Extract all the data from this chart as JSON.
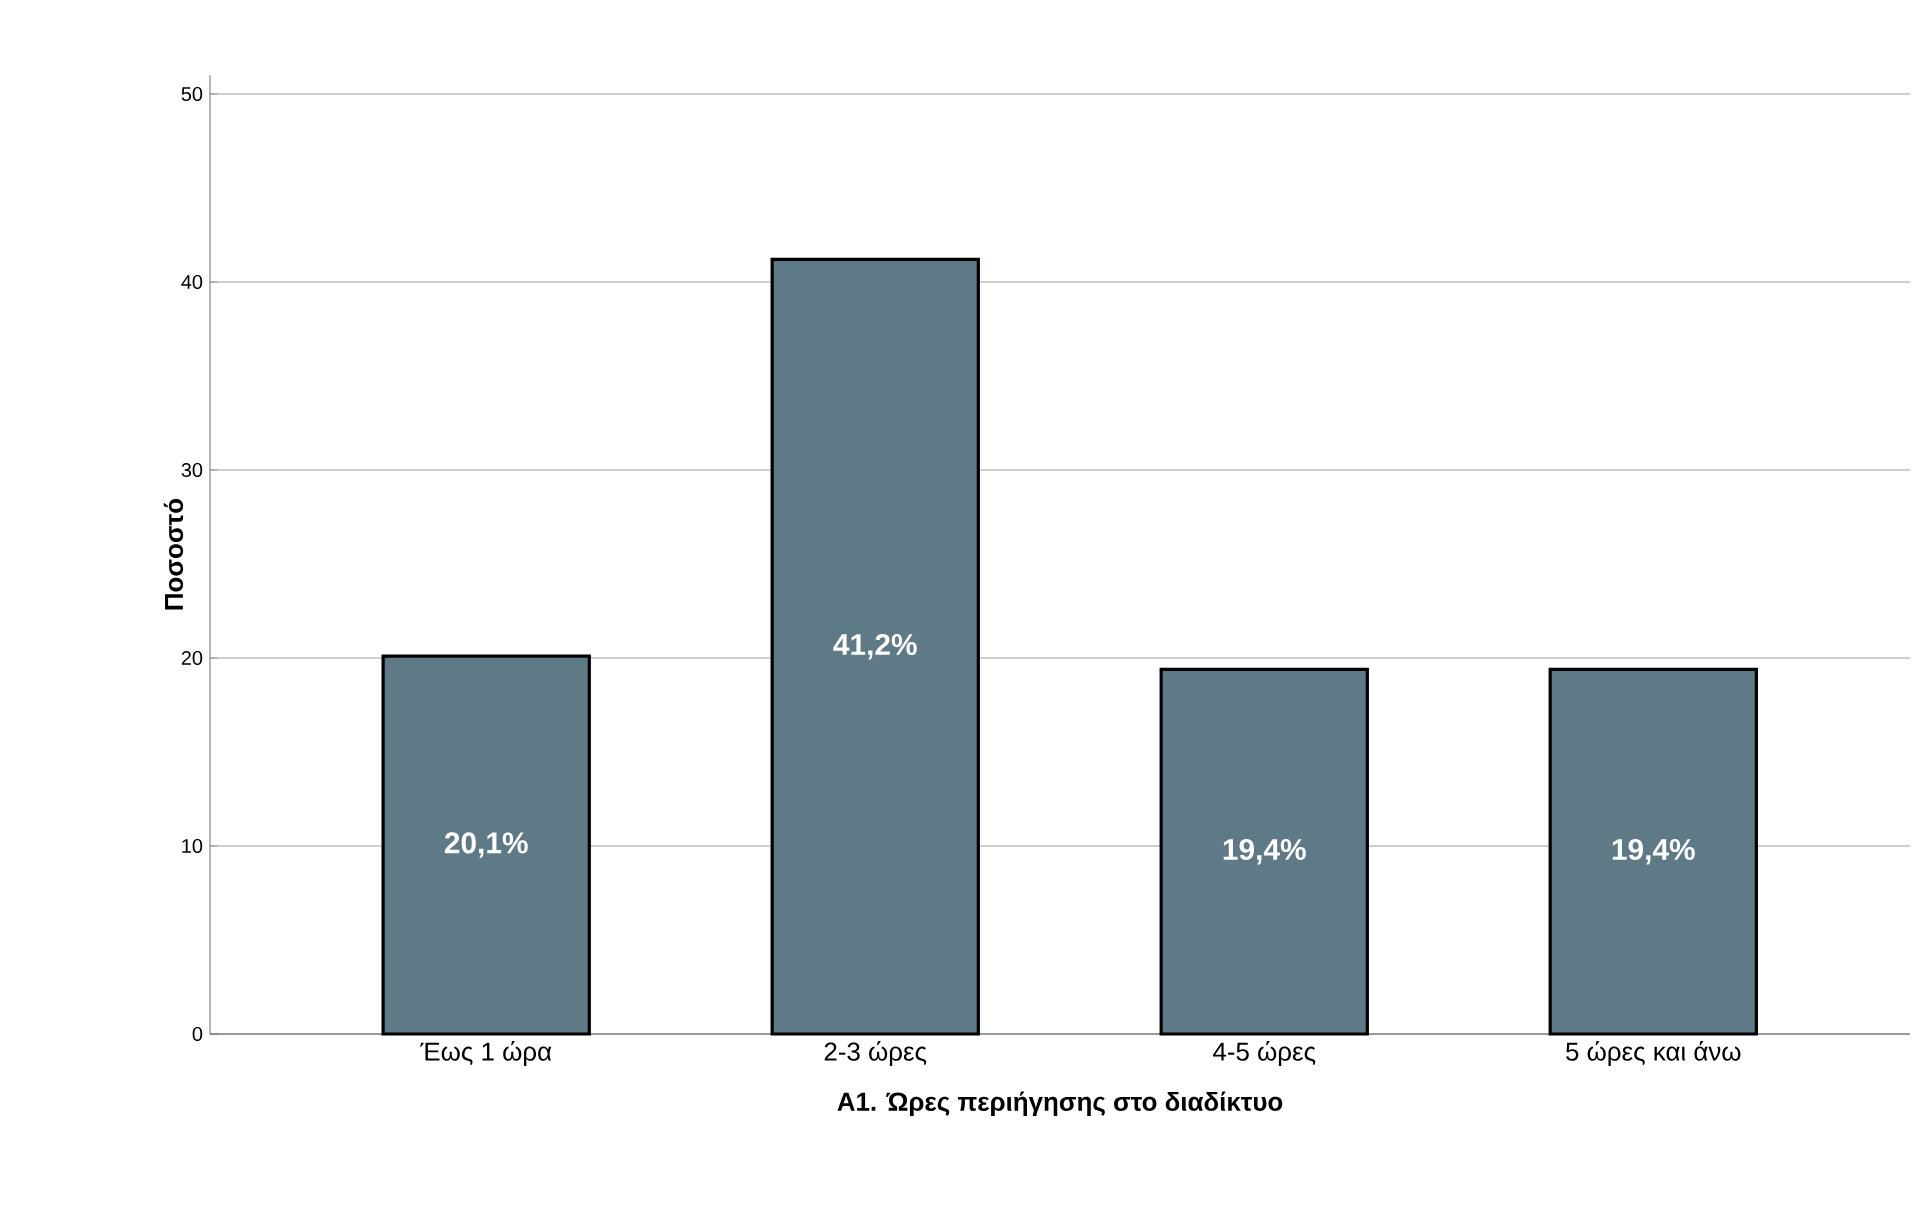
{
  "chart_data": {
    "type": "bar",
    "xlabel": "A1. Ώρες περιήγησης στο διαδίκτυο",
    "ylabel": "Ποσοστό",
    "categories": [
      "Έως 1 ώρα",
      "2-3 ώρες",
      "4-5 ώρες",
      "5 ώρες και άνω"
    ],
    "values": [
      20.1,
      41.2,
      19.4,
      19.4
    ],
    "value_labels": [
      "20,1%",
      "41,2%",
      "19,4%",
      "19,4%"
    ],
    "color": "#5f7a87",
    "ylim": [
      0,
      51
    ],
    "yticks": [
      0,
      10,
      20,
      30,
      40,
      50
    ],
    "grid": "y"
  }
}
